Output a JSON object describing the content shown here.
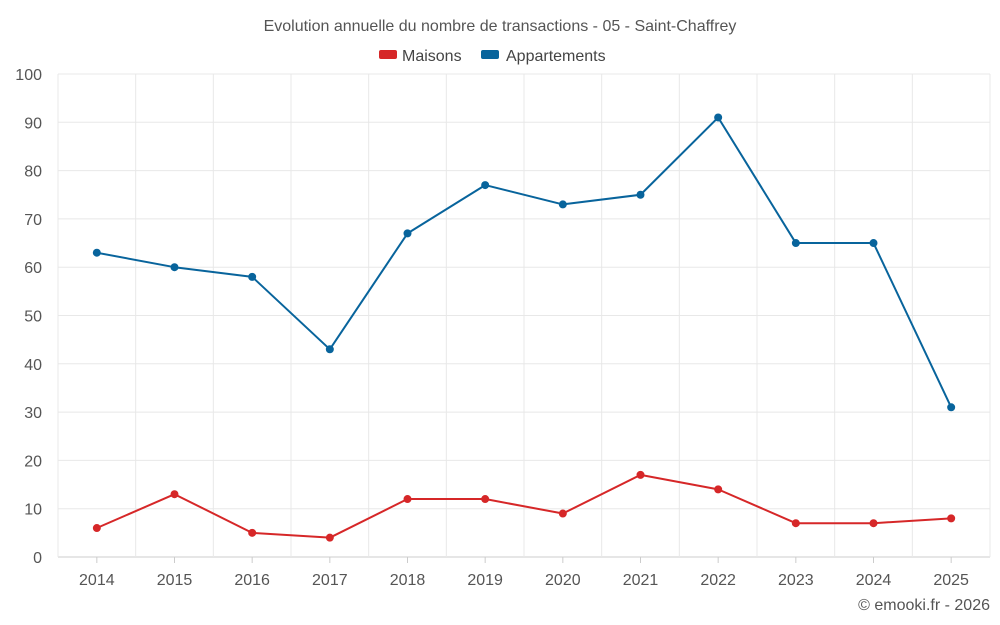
{
  "chart_data": {
    "type": "line",
    "title": "Evolution annuelle du nombre de transactions - 05 - Saint-Chaffrey",
    "categories": [
      "2014",
      "2015",
      "2016",
      "2017",
      "2018",
      "2019",
      "2020",
      "2021",
      "2022",
      "2023",
      "2024",
      "2025"
    ],
    "series": [
      {
        "name": "Maisons",
        "color": "#d62728",
        "values": [
          6,
          13,
          5,
          4,
          12,
          12,
          9,
          17,
          14,
          7,
          7,
          8
        ]
      },
      {
        "name": "Appartements",
        "color": "#08649c",
        "values": [
          63,
          60,
          58,
          43,
          67,
          77,
          73,
          75,
          91,
          65,
          65,
          31
        ]
      }
    ],
    "ylim": [
      0,
      100
    ],
    "yticks": [
      0,
      10,
      20,
      30,
      40,
      50,
      60,
      70,
      80,
      90,
      100
    ],
    "grid": true,
    "legend_position": "top-center",
    "xlabel": "",
    "ylabel": ""
  },
  "footer": {
    "credit": "© emooki.fr - 2026"
  },
  "colors": {
    "grid": "#e8e8e8",
    "axis": "#cccccc",
    "text": "#555555"
  }
}
